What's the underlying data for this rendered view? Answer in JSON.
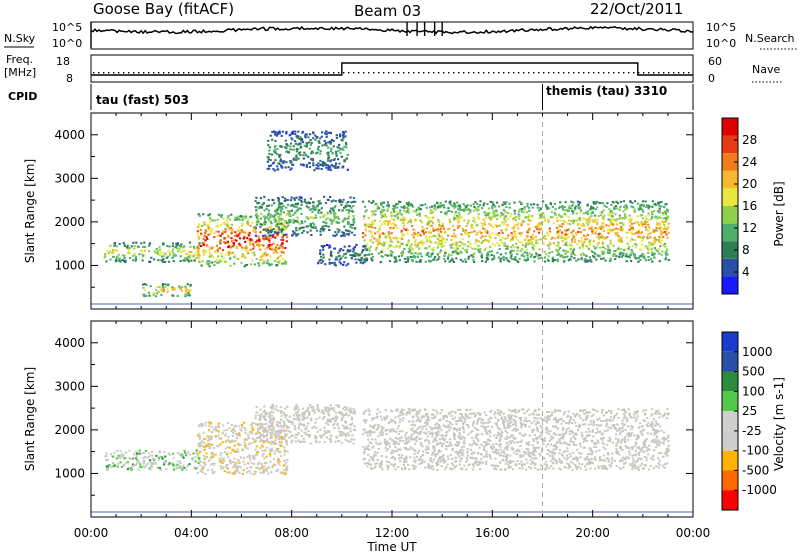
{
  "header": {
    "station": "Goose Bay (fitACF)",
    "beam": "Beam 03",
    "date": "22/Oct/2011"
  },
  "status_panels": {
    "nsky_label": "N.Sky",
    "nsearch_label": "N.Search",
    "freq_label_1": "Freq.",
    "freq_label_2": "[MHz]",
    "nave_label": "Nave",
    "cpid_label": "CPID",
    "noise_ticks": [
      "10^5",
      "10^0"
    ],
    "freq_ticks": [
      "18",
      "8"
    ],
    "nave_ticks": [
      "60",
      "0"
    ],
    "cpid_segments": [
      {
        "label": "tau (fast) 503",
        "start_hour": 0.0
      },
      {
        "label": "themis (tau) 3310",
        "start_hour": 18.0
      }
    ]
  },
  "x_axis": {
    "title": "Time UT",
    "ticks": [
      "00:00",
      "04:00",
      "08:00",
      "12:00",
      "16:00",
      "20:00",
      "00:00"
    ],
    "range_hours": [
      0,
      24
    ]
  },
  "colors": {
    "power": [
      "#1a1aff",
      "#2a4fa8",
      "#2f7f55",
      "#4caf6a",
      "#8fd04a",
      "#e8e840",
      "#f5b82e",
      "#f07d1a",
      "#e83a14",
      "#e00000"
    ],
    "velocity": [
      "#ff0000",
      "#ff6a00",
      "#ffb300",
      "#cccccc",
      "#cfd0cc",
      "#52c94a",
      "#2a8c3c",
      "#2a4fa8",
      "#1a3ccc"
    ],
    "ground_scatter": "#c8c8c0"
  },
  "chart_data": [
    {
      "type": "heatmap",
      "name": "power-panel",
      "ylabel": "Slant Range [km]",
      "xlabel": "",
      "x_range_hours": [
        0,
        24
      ],
      "ylim": [
        0,
        4500
      ],
      "y_ticks": [
        "1000",
        "2000",
        "3000",
        "4000"
      ],
      "colorbar": {
        "label": "Power [dB]",
        "ticks": [
          "4",
          "8",
          "12",
          "16",
          "20",
          "24",
          "28"
        ],
        "range": [
          0,
          30
        ]
      },
      "scatter_regions": [
        {
          "t0": 0.5,
          "t1": 4.3,
          "r0": 1100,
          "r1": 1550,
          "peak_db": 18
        },
        {
          "t0": 2.0,
          "t1": 4.0,
          "r0": 300,
          "r1": 600,
          "peak_db": 20
        },
        {
          "t0": 4.2,
          "t1": 7.8,
          "r0": 1000,
          "r1": 2200,
          "peak_db": 28
        },
        {
          "t0": 6.5,
          "t1": 10.5,
          "r0": 1700,
          "r1": 2600,
          "peak_db": 14
        },
        {
          "t0": 7.0,
          "t1": 10.2,
          "r0": 3200,
          "r1": 4100,
          "peak_db": 10
        },
        {
          "t0": 9.0,
          "t1": 11.0,
          "r0": 1000,
          "r1": 1500,
          "peak_db": 8
        },
        {
          "t0": 10.8,
          "t1": 23.0,
          "r0": 1100,
          "r1": 2500,
          "peak_db": 22
        }
      ]
    },
    {
      "type": "heatmap",
      "name": "velocity-panel",
      "ylabel": "Slant Range [km]",
      "xlabel": "Time UT",
      "x_range_hours": [
        0,
        24
      ],
      "ylim": [
        0,
        4500
      ],
      "y_ticks": [
        "1000",
        "2000",
        "3000",
        "4000"
      ],
      "colorbar": {
        "label": "Velocity [m s-1]",
        "ticks": [
          "1000",
          "500",
          "100",
          "25",
          "-25",
          "-100",
          "-500",
          "-1000"
        ],
        "range": [
          -1000,
          1000
        ]
      },
      "scatter_regions": [
        {
          "t0": 0.5,
          "t1": 4.3,
          "r0": 1100,
          "r1": 1550,
          "velocity": 200
        },
        {
          "t0": 4.2,
          "t1": 7.8,
          "r0": 1000,
          "r1": 2200,
          "velocity": -300
        },
        {
          "t0": 6.5,
          "t1": 10.5,
          "r0": 1700,
          "r1": 2600,
          "velocity": 0
        },
        {
          "t0": 10.8,
          "t1": 23.0,
          "r0": 1100,
          "r1": 2500,
          "velocity": 0
        }
      ]
    }
  ]
}
